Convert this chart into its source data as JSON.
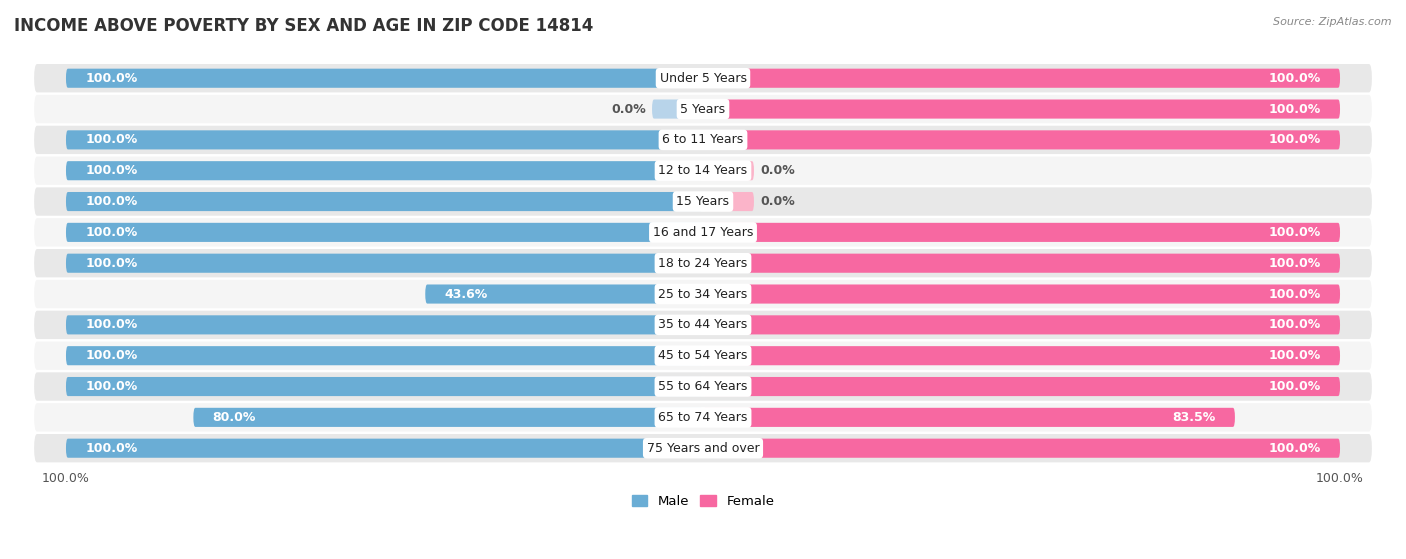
{
  "title": "INCOME ABOVE POVERTY BY SEX AND AGE IN ZIP CODE 14814",
  "source": "Source: ZipAtlas.com",
  "categories": [
    "Under 5 Years",
    "5 Years",
    "6 to 11 Years",
    "12 to 14 Years",
    "15 Years",
    "16 and 17 Years",
    "18 to 24 Years",
    "25 to 34 Years",
    "35 to 44 Years",
    "45 to 54 Years",
    "55 to 64 Years",
    "65 to 74 Years",
    "75 Years and over"
  ],
  "male_values": [
    100.0,
    0.0,
    100.0,
    100.0,
    100.0,
    100.0,
    100.0,
    43.6,
    100.0,
    100.0,
    100.0,
    80.0,
    100.0
  ],
  "female_values": [
    100.0,
    100.0,
    100.0,
    0.0,
    0.0,
    100.0,
    100.0,
    100.0,
    100.0,
    100.0,
    100.0,
    83.5,
    100.0
  ],
  "male_color": "#6aadd5",
  "male_color_light": "#b8d4ea",
  "female_color": "#f768a1",
  "female_color_light": "#fbb4c9",
  "male_label": "Male",
  "female_label": "Female",
  "bar_height": 0.62,
  "row_color_dark": "#e8e8e8",
  "row_color_light": "#f5f5f5",
  "x_max": 100.0,
  "title_fontsize": 12,
  "label_fontsize": 9,
  "category_fontsize": 9,
  "value_color_white": "white",
  "value_color_dark": "#555555"
}
